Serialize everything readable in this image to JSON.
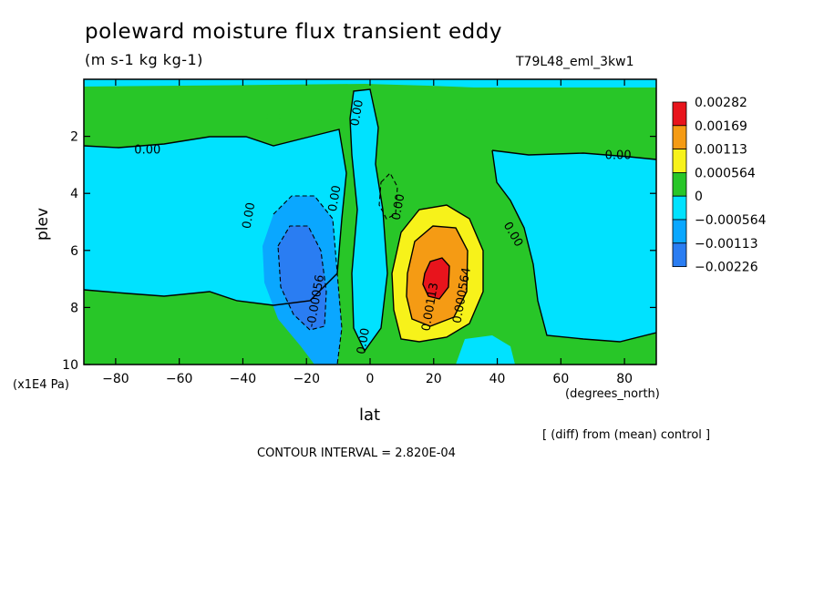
{
  "chart_data": {
    "type": "heatmap",
    "title": "poleward moisture flux transient eddy",
    "units": "(m s-1 kg kg-1)",
    "run_label": "T79L48_eml_3kw1",
    "xlabel": "lat",
    "x_unit": "(degrees_north)",
    "ylabel": "plev",
    "y_unit": "(x1E4 Pa)",
    "xlim": [
      -90,
      90
    ],
    "ylim": [
      10,
      0
    ],
    "x_ticks": [
      -80,
      -60,
      -40,
      -20,
      0,
      20,
      40,
      60,
      80
    ],
    "y_ticks": [
      2,
      4,
      6,
      8,
      10
    ],
    "x_tick_labels": [
      "−80",
      "−60",
      "−40",
      "−20",
      "0",
      "20",
      "40",
      "60",
      "80"
    ],
    "y_tick_labels": [
      "2",
      "4",
      "6",
      "8",
      "10"
    ],
    "colorbar": {
      "levels": [
        "0.00282",
        "0.00169",
        "0.00113",
        "0.000564",
        "0",
        "−0.000564",
        "−0.00113",
        "−0.00226"
      ],
      "colors": [
        "#e8141c",
        "#f59b14",
        "#f7f21a",
        "#28c628",
        "#00e2ff",
        "#0aa7ff",
        "#2a7df2"
      ]
    },
    "contour_labels": [
      {
        "text": "0.00",
        "lat": -70,
        "plev": 2.6
      },
      {
        "text": "0.00",
        "lat": 78,
        "plev": 2.8
      },
      {
        "text": "0.00",
        "lat": -3,
        "plev": 1.2
      },
      {
        "text": "0.00",
        "lat": -37,
        "plev": 4.8
      },
      {
        "text": "0.00",
        "lat": -10,
        "plev": 4.2
      },
      {
        "text": "0.00",
        "lat": 10,
        "plev": 4.5
      },
      {
        "text": "0.00",
        "lat": 44,
        "plev": 5.5
      },
      {
        "text": "0.00",
        "lat": -1,
        "plev": 9.2
      },
      {
        "text": "-0.00056",
        "lat": -16,
        "plev": 7.8
      },
      {
        "text": "0.00113",
        "lat": 20,
        "plev": 8.0
      },
      {
        "text": "0.000564",
        "lat": 30,
        "plev": 7.6
      }
    ],
    "features": [
      {
        "name": "negative-core",
        "lat": -22,
        "plev": 7.0,
        "value": -0.00226
      },
      {
        "name": "positive-core",
        "lat": 20,
        "plev": 7.1,
        "value": 0.00282
      }
    ],
    "contour_interval": "CONTOUR INTERVAL = 2.820E-04",
    "diff_note": "[ (diff) from (mean) control ]"
  },
  "colors": {
    "frame": "#000000",
    "background": "#ffffff"
  }
}
